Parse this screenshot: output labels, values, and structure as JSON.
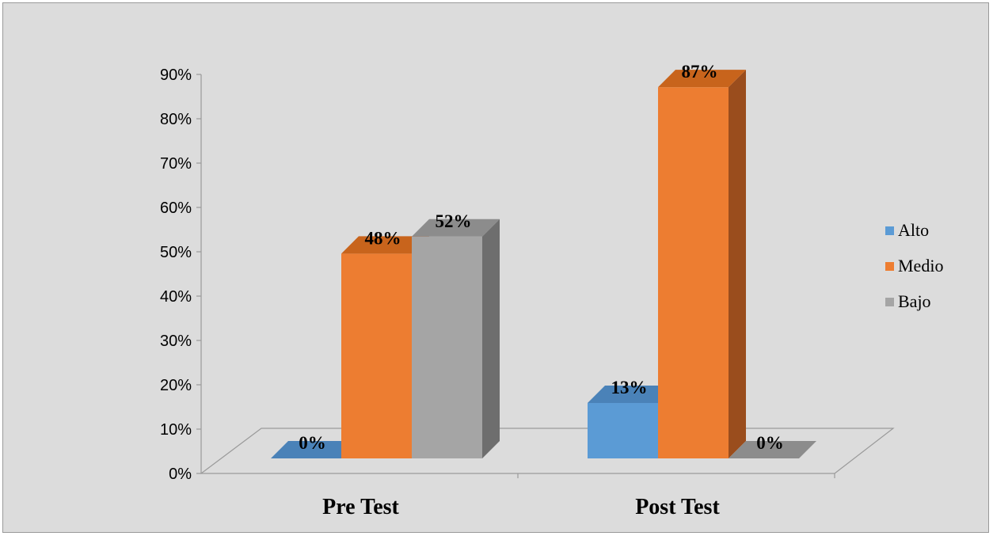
{
  "chart_data": {
    "type": "bar",
    "style": "3d-clustered-column",
    "categories": [
      "Pre Test",
      "Post Test"
    ],
    "series": [
      {
        "name": "Alto",
        "values": [
          0,
          13
        ],
        "labels": [
          "0%",
          "13%"
        ],
        "color": "#5b9bd5",
        "color_top": "#4a82b8",
        "color_side": "#41719c"
      },
      {
        "name": "Medio",
        "values": [
          48,
          87
        ],
        "labels": [
          "48%",
          "87%"
        ],
        "color": "#ed7d31",
        "color_top": "#c8641c",
        "color_side": "#9a4d1d"
      },
      {
        "name": "Bajo",
        "values": [
          52,
          0
        ],
        "labels": [
          "52%",
          "0%"
        ],
        "color": "#a5a5a5",
        "color_top": "#8c8c8c",
        "color_side": "#6e6e6e"
      }
    ],
    "y_ticks": [
      "0%",
      "10%",
      "20%",
      "30%",
      "40%",
      "50%",
      "60%",
      "70%",
      "80%",
      "90%"
    ],
    "ylim": [
      0,
      90
    ],
    "ylabel": "",
    "xlabel": "",
    "title": "",
    "grid": false,
    "legend_position": "right",
    "background": "#dcdcdc"
  }
}
